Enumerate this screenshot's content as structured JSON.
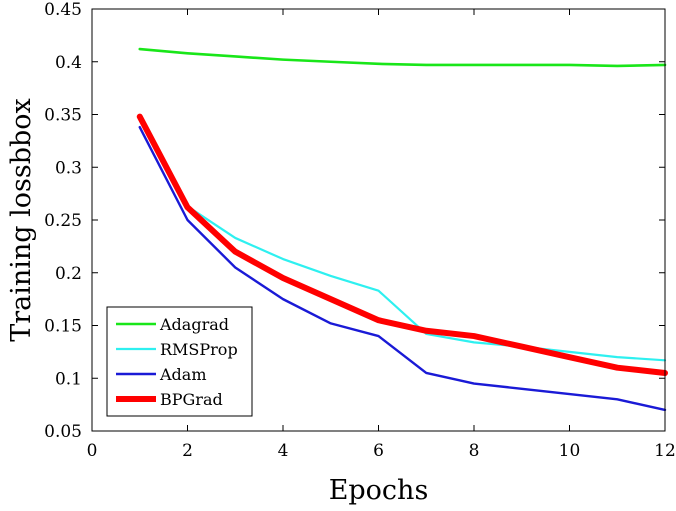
{
  "chart_data": {
    "type": "line",
    "title": "",
    "xlabel": "Epochs",
    "ylabel": "Training lossbbox",
    "xlim": [
      0,
      12
    ],
    "ylim": [
      0.05,
      0.45
    ],
    "x_ticks": [
      "0",
      "2",
      "4",
      "6",
      "8",
      "10",
      "12"
    ],
    "y_ticks": [
      "0.05",
      "0.1",
      "0.15",
      "0.2",
      "0.25",
      "0.3",
      "0.35",
      "0.4",
      "0.45"
    ],
    "grid": false,
    "legend_position": "bottom-left",
    "x": [
      1,
      2,
      3,
      4,
      5,
      6,
      7,
      8,
      9,
      10,
      11,
      12
    ],
    "series": [
      {
        "name": "Adagrad",
        "color": "#19e619",
        "values": [
          0.412,
          0.408,
          0.405,
          0.402,
          0.4,
          0.398,
          0.397,
          0.397,
          0.397,
          0.397,
          0.396,
          0.397
        ]
      },
      {
        "name": "RMSProp",
        "color": "#2ef0f0",
        "values": [
          0.345,
          0.263,
          0.233,
          0.213,
          0.197,
          0.183,
          0.142,
          0.134,
          0.13,
          0.125,
          0.12,
          0.117
        ]
      },
      {
        "name": "Adam",
        "color": "#1a1ad6",
        "values": [
          0.338,
          0.25,
          0.205,
          0.175,
          0.152,
          0.14,
          0.105,
          0.095,
          0.09,
          0.085,
          0.08,
          0.07
        ]
      },
      {
        "name": "BPGrad",
        "color": "#ff0000",
        "values": [
          0.348,
          0.262,
          0.22,
          0.195,
          0.175,
          0.155,
          0.145,
          0.14,
          0.13,
          0.12,
          0.11,
          0.105
        ]
      }
    ]
  }
}
